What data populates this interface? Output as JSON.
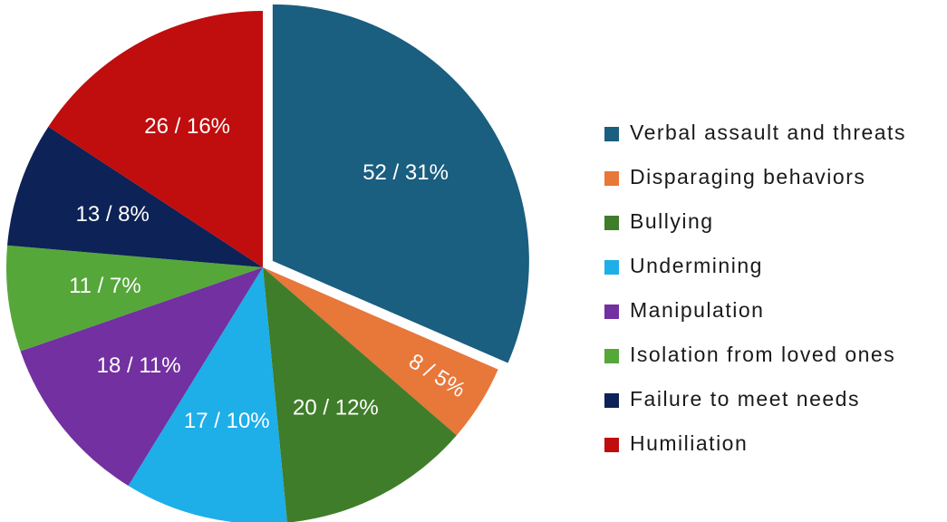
{
  "chart_data": {
    "type": "pie",
    "categories": [
      "Verbal assault and threats",
      "Disparaging behaviors",
      "Bullying",
      "Undermining",
      "Manipulation",
      "Isolation from loved ones",
      "Failure to meet needs",
      "Humiliation"
    ],
    "values": [
      52,
      8,
      20,
      17,
      18,
      11,
      13,
      26
    ],
    "value_labels": [
      "52 / 31%",
      "8 / 5%",
      "20 / 12%",
      "17 / 10%",
      "18 / 11%",
      "11 / 7%",
      "13 / 8%",
      "26 / 16%"
    ],
    "colors": [
      "#1a5e80",
      "#e8773a",
      "#3f7d2a",
      "#1eaee8",
      "#7230a0",
      "#55a73a",
      "#0d2256",
      "#c00d0d"
    ],
    "legend": "right"
  }
}
